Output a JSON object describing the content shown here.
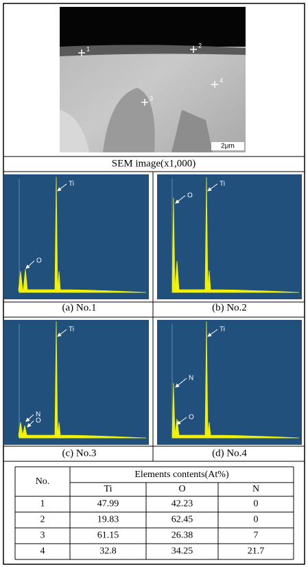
{
  "sem_image": {
    "markers": [
      "1",
      "2",
      "3",
      "4"
    ],
    "scale_bar": "2μm",
    "caption": "SEM image(x1,000)"
  },
  "spectra": [
    {
      "caption": "(a) No.1",
      "labels": [
        "Ti",
        "O"
      ]
    },
    {
      "caption": "(b) No.2",
      "labels": [
        "O",
        "Ti"
      ]
    },
    {
      "caption": "(c) No.3",
      "labels": [
        "Ti",
        "N",
        "O"
      ]
    },
    {
      "caption": "(d) No.4",
      "labels": [
        "N",
        "Ti",
        "O"
      ]
    }
  ],
  "table": {
    "header": [
      "No.",
      "Elements contents(At%)"
    ],
    "subheader": [
      "Ti",
      "O",
      "N"
    ],
    "rows": [
      [
        1,
        47.99,
        42.23,
        0
      ],
      [
        2,
        19.83,
        62.45,
        0
      ],
      [
        3,
        61.15,
        26.38,
        7
      ],
      [
        4,
        32.8,
        34.25,
        21.7
      ]
    ]
  }
}
